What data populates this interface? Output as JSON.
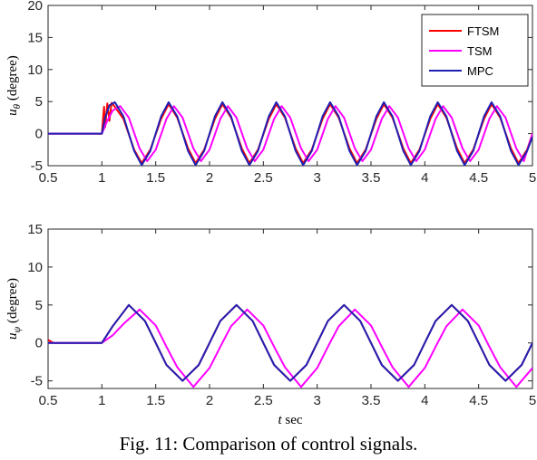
{
  "caption": "Fig. 11: Comparison of control signals.",
  "chart_data": [
    {
      "type": "line",
      "id": "top",
      "ylabel_main": "u",
      "ylabel_sub": "θ",
      "ylabel_unit": " (degree)",
      "xlabel": "",
      "xlim": [
        0.5,
        5
      ],
      "ylim": [
        -5,
        20
      ],
      "xticks": [
        0.5,
        1,
        1.5,
        2,
        2.5,
        3,
        3.5,
        4,
        4.5,
        5
      ],
      "xtick_labels": [
        "0.5",
        "1",
        "1.5",
        "2",
        "2.5",
        "3",
        "3.5",
        "4",
        "4.5",
        "5"
      ],
      "yticks": [
        -5,
        0,
        5,
        10,
        15,
        20
      ],
      "ytick_labels": [
        "-5",
        "0",
        "5",
        "10",
        "15",
        "20"
      ],
      "legend_position": "top-right",
      "series": [
        {
          "name": "FTSM",
          "color": "#ff0000",
          "x": [
            0.5,
            1.0,
            1.02,
            1.03,
            1.05,
            1.07,
            1.09,
            1.11,
            1.2,
            1.3,
            1.37,
            1.45,
            1.55,
            1.62,
            1.7,
            1.8,
            1.87,
            1.95,
            2.05,
            2.12,
            2.2,
            2.3,
            2.37,
            2.45,
            2.55,
            2.62,
            2.7,
            2.8,
            2.87,
            2.95,
            3.05,
            3.12,
            3.2,
            3.3,
            3.37,
            3.45,
            3.55,
            3.62,
            3.7,
            3.8,
            3.87,
            3.95,
            4.05,
            4.12,
            4.2,
            4.3,
            4.37,
            4.45,
            4.55,
            4.62,
            4.7,
            4.8,
            4.87,
            4.95,
            5.0
          ],
          "y": [
            0.0,
            0.0,
            4.2,
            1.0,
            4.7,
            2.0,
            4.8,
            4.4,
            2.3,
            -2.5,
            -4.6,
            -2.5,
            2.3,
            4.6,
            2.5,
            -2.3,
            -4.6,
            -2.5,
            2.3,
            4.6,
            2.5,
            -2.3,
            -4.6,
            -2.5,
            2.3,
            4.6,
            2.5,
            -2.3,
            -4.6,
            -2.5,
            2.3,
            4.6,
            2.5,
            -2.3,
            -4.6,
            -2.5,
            2.3,
            4.6,
            2.5,
            -2.3,
            -4.6,
            -2.5,
            2.3,
            4.6,
            2.5,
            -2.3,
            -4.6,
            -2.5,
            2.3,
            4.6,
            2.5,
            -2.3,
            -4.6,
            -2.5,
            0.0
          ]
        },
        {
          "name": "TSM",
          "color": "#ff00ff",
          "x": [
            0.5,
            1.0,
            1.05,
            1.1,
            1.17,
            1.25,
            1.35,
            1.42,
            1.5,
            1.6,
            1.67,
            1.75,
            1.85,
            1.92,
            2.0,
            2.1,
            2.17,
            2.25,
            2.35,
            2.42,
            2.5,
            2.6,
            2.67,
            2.75,
            2.85,
            2.92,
            3.0,
            3.1,
            3.17,
            3.25,
            3.35,
            3.42,
            3.5,
            3.6,
            3.67,
            3.75,
            3.85,
            3.92,
            4.0,
            4.1,
            4.17,
            4.25,
            4.35,
            4.42,
            4.5,
            4.6,
            4.67,
            4.75,
            4.85,
            4.92,
            5.0
          ],
          "y": [
            0.0,
            0.0,
            2.0,
            3.6,
            4.3,
            2.5,
            -2.3,
            -4.3,
            -2.5,
            2.3,
            4.3,
            2.5,
            -2.3,
            -4.3,
            -2.5,
            2.3,
            4.3,
            2.5,
            -2.3,
            -4.3,
            -2.5,
            2.3,
            4.3,
            2.5,
            -2.3,
            -4.3,
            -2.5,
            2.3,
            4.3,
            2.5,
            -2.3,
            -4.3,
            -2.5,
            2.3,
            4.3,
            2.5,
            -2.3,
            -4.3,
            -2.5,
            2.3,
            4.3,
            2.5,
            -2.3,
            -4.3,
            -2.5,
            2.3,
            4.3,
            2.5,
            -2.3,
            -4.3,
            0.0
          ]
        },
        {
          "name": "MPC",
          "color": "#1f1fb4",
          "x": [
            0.5,
            1.0,
            1.03,
            1.07,
            1.12,
            1.2,
            1.3,
            1.37,
            1.45,
            1.55,
            1.62,
            1.7,
            1.8,
            1.87,
            1.95,
            2.05,
            2.12,
            2.2,
            2.3,
            2.37,
            2.45,
            2.55,
            2.62,
            2.7,
            2.8,
            2.87,
            2.95,
            3.05,
            3.12,
            3.2,
            3.3,
            3.37,
            3.45,
            3.55,
            3.62,
            3.7,
            3.8,
            3.87,
            3.95,
            4.05,
            4.12,
            4.2,
            4.3,
            4.37,
            4.45,
            4.55,
            4.62,
            4.7,
            4.8,
            4.87,
            4.95,
            5.0
          ],
          "y": [
            0.0,
            0.0,
            2.5,
            4.4,
            4.9,
            2.7,
            -2.7,
            -4.9,
            -2.7,
            2.7,
            4.9,
            2.7,
            -2.7,
            -4.9,
            -2.7,
            2.7,
            4.9,
            2.7,
            -2.7,
            -4.9,
            -2.7,
            2.7,
            4.9,
            2.7,
            -2.7,
            -4.9,
            -2.7,
            2.7,
            4.9,
            2.7,
            -2.7,
            -4.9,
            -2.7,
            2.7,
            4.9,
            2.7,
            -2.7,
            -4.9,
            -2.7,
            2.7,
            4.9,
            2.7,
            -2.7,
            -4.9,
            -2.7,
            2.7,
            4.9,
            2.7,
            -2.7,
            -4.9,
            -2.7,
            -0.5
          ]
        }
      ]
    },
    {
      "type": "line",
      "id": "bottom",
      "ylabel_main": "u",
      "ylabel_sub": "ψ",
      "ylabel_unit": " (degree)",
      "xlabel_var": "t",
      "xlabel_unit": " sec",
      "xlim": [
        0.5,
        5
      ],
      "ylim": [
        -6,
        15
      ],
      "xticks": [
        0.5,
        1,
        1.5,
        2,
        2.5,
        3,
        3.5,
        4,
        4.5,
        5
      ],
      "xtick_labels": [
        "0.5",
        "1",
        "1.5",
        "2",
        "2.5",
        "3",
        "3.5",
        "4",
        "4.5",
        "5"
      ],
      "yticks": [
        -5,
        0,
        5,
        10,
        15
      ],
      "ytick_labels": [
        "-5",
        "0",
        "5",
        "10",
        "15"
      ],
      "series": [
        {
          "name": "FTSM",
          "color": "#ff0000",
          "x": [
            0.5,
            0.55,
            1.0,
            1.1,
            1.25,
            1.4,
            1.5,
            1.6,
            1.75,
            1.9,
            2.0,
            2.1,
            2.25,
            2.4,
            2.5,
            2.6,
            2.75,
            2.9,
            3.0,
            3.1,
            3.25,
            3.4,
            3.5,
            3.6,
            3.75,
            3.9,
            4.0,
            4.1,
            4.25,
            4.4,
            4.5,
            4.6,
            4.75,
            4.9,
            5.0
          ],
          "y": [
            0.4,
            0.0,
            0.0,
            2.2,
            5.0,
            2.9,
            0.0,
            -2.9,
            -5.0,
            -2.9,
            0.0,
            2.9,
            5.0,
            2.9,
            0.0,
            -2.9,
            -5.0,
            -2.9,
            0.0,
            2.9,
            5.0,
            2.9,
            0.0,
            -2.9,
            -5.0,
            -2.9,
            0.0,
            2.9,
            5.0,
            2.9,
            0.0,
            -2.9,
            -5.0,
            -2.9,
            0.0
          ]
        },
        {
          "name": "TSM",
          "color": "#ff00ff",
          "x": [
            0.5,
            1.0,
            1.1,
            1.2,
            1.35,
            1.5,
            1.6,
            1.7,
            1.85,
            2.0,
            2.1,
            2.2,
            2.35,
            2.5,
            2.6,
            2.7,
            2.85,
            3.0,
            3.1,
            3.2,
            3.35,
            3.5,
            3.6,
            3.7,
            3.85,
            4.0,
            4.1,
            4.2,
            4.35,
            4.5,
            4.6,
            4.7,
            4.85,
            5.0
          ],
          "y": [
            0.0,
            0.0,
            1.0,
            2.5,
            4.4,
            2.3,
            -0.5,
            -3.2,
            -5.8,
            -3.3,
            -0.5,
            2.2,
            4.4,
            2.3,
            -0.5,
            -3.2,
            -5.8,
            -3.3,
            -0.5,
            2.2,
            4.4,
            2.3,
            -0.5,
            -3.2,
            -5.8,
            -3.3,
            -0.5,
            2.2,
            4.4,
            2.3,
            -0.5,
            -3.2,
            -5.8,
            -3.3
          ]
        },
        {
          "name": "MPC",
          "color": "#1f1fb4",
          "x": [
            0.5,
            1.0,
            1.1,
            1.25,
            1.4,
            1.5,
            1.6,
            1.75,
            1.9,
            2.0,
            2.1,
            2.25,
            2.4,
            2.5,
            2.6,
            2.75,
            2.9,
            3.0,
            3.1,
            3.25,
            3.4,
            3.5,
            3.6,
            3.75,
            3.9,
            4.0,
            4.1,
            4.25,
            4.4,
            4.5,
            4.6,
            4.75,
            4.9,
            5.0
          ],
          "y": [
            0.0,
            0.0,
            2.2,
            5.0,
            2.9,
            0.0,
            -2.9,
            -5.0,
            -2.9,
            0.0,
            2.9,
            5.0,
            2.9,
            0.0,
            -2.9,
            -5.0,
            -2.9,
            0.0,
            2.9,
            5.0,
            2.9,
            0.0,
            -2.9,
            -5.0,
            -2.9,
            0.0,
            2.9,
            5.0,
            2.9,
            0.0,
            -2.9,
            -5.0,
            -2.9,
            0.0
          ]
        }
      ]
    }
  ]
}
